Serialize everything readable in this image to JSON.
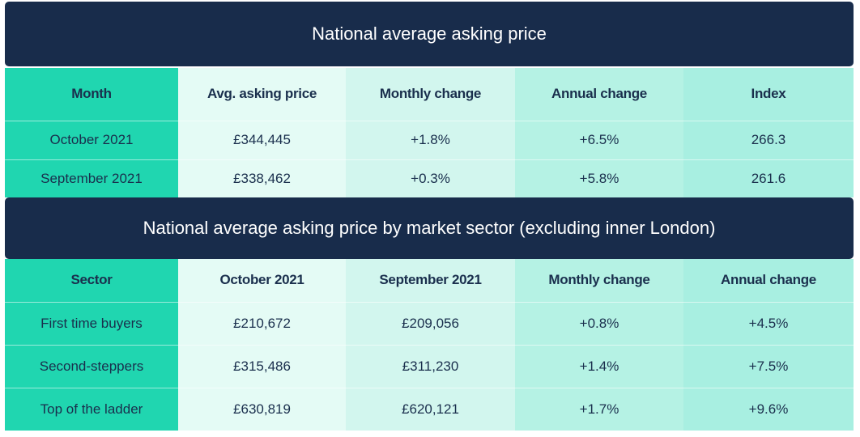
{
  "table1": {
    "title": "National average asking price",
    "headers": [
      "Month",
      "Avg. asking price",
      "Monthly change",
      "Annual change",
      "Index"
    ],
    "rows": [
      [
        "October 2021",
        "£344,445",
        "+1.8%",
        "+6.5%",
        "266.3"
      ],
      [
        "September 2021",
        "£338,462",
        "+0.3%",
        "+5.8%",
        "261.6"
      ]
    ]
  },
  "table2": {
    "title": "National average asking price by market sector (excluding inner London)",
    "headers": [
      "Sector",
      "October 2021",
      "September 2021",
      "Monthly change",
      "Annual change"
    ],
    "rows": [
      [
        "First time buyers",
        "£210,672",
        "£209,056",
        "+0.8%",
        "+4.5%"
      ],
      [
        "Second-steppers",
        "£315,486",
        "£311,230",
        "+1.4%",
        "+7.5%"
      ],
      [
        "Top of the ladder",
        "£630,819",
        "£620,121",
        "+1.7%",
        "+9.6%"
      ]
    ]
  },
  "colors": {
    "banner": "#182c4b",
    "col_1": "#20d6b0",
    "col_2": "#e4fbf5",
    "col_3": "#d2f6ee",
    "col_4": "#b5f2e4",
    "col_5": "#a8efe1"
  }
}
